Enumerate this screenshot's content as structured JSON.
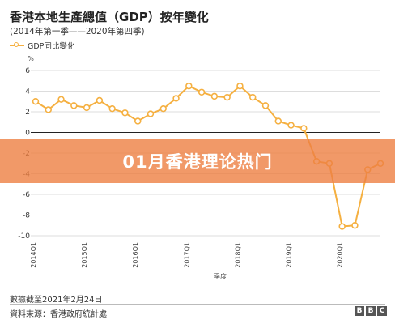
{
  "header": {
    "title": "香港本地生產總值（GDP）按年變化",
    "subtitle": "(2014年第一季——2020年第四季)",
    "legend_label": "GDP同比變化"
  },
  "banner": {
    "text": "01月香港理论热门"
  },
  "footer": {
    "note": "數據截至2021年2月24日",
    "source": "資料來源：香港政府統計處",
    "logo": [
      "B",
      "B",
      "C"
    ]
  },
  "chart_data": {
    "type": "line",
    "title": "香港本地生產總值（GDP）按年變化",
    "subtitle": "(2014年第一季——2020年第四季)",
    "xlabel": "季度",
    "ylabel": "%",
    "ylim": [
      -10,
      6
    ],
    "yticks": [
      6,
      4,
      2,
      0,
      -2,
      -4,
      -6,
      -8,
      -10
    ],
    "grid": true,
    "legend": "top-left",
    "x_tick_labels": [
      "2014Q1",
      "2015Q1",
      "2016Q1",
      "2017Q1",
      "2018Q1",
      "2019Q1",
      "2020Q1"
    ],
    "x": [
      "2014Q1",
      "2014Q2",
      "2014Q3",
      "2014Q4",
      "2015Q1",
      "2015Q2",
      "2015Q3",
      "2015Q4",
      "2016Q1",
      "2016Q2",
      "2016Q3",
      "2016Q4",
      "2017Q1",
      "2017Q2",
      "2017Q3",
      "2017Q4",
      "2018Q1",
      "2018Q2",
      "2018Q3",
      "2018Q4",
      "2019Q1",
      "2019Q2",
      "2019Q3",
      "2019Q4",
      "2020Q1",
      "2020Q2",
      "2020Q3",
      "2020Q4"
    ],
    "series": [
      {
        "name": "GDP同比變化",
        "color": "#f5b041",
        "values": [
          3.0,
          2.2,
          3.2,
          2.6,
          2.4,
          3.1,
          2.3,
          1.9,
          1.1,
          1.8,
          2.3,
          3.3,
          4.5,
          3.9,
          3.5,
          3.4,
          4.5,
          3.4,
          2.6,
          1.1,
          0.7,
          0.4,
          -2.8,
          -3.0,
          -9.1,
          -9.0,
          -3.6,
          -3.0
        ]
      }
    ]
  }
}
